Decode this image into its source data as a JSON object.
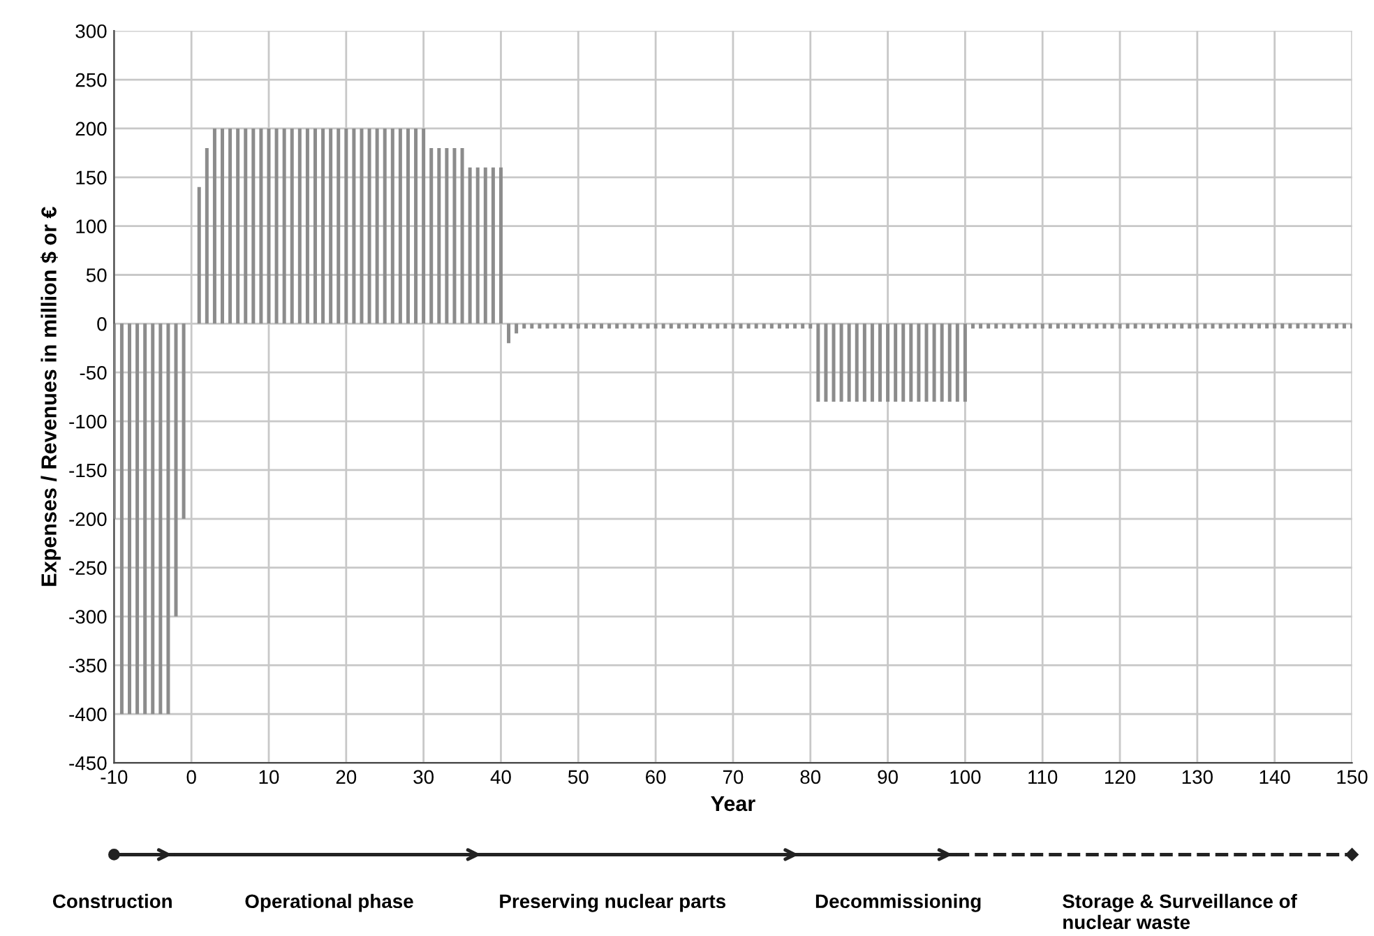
{
  "chart_data": {
    "type": "bar",
    "xlabel": "Year",
    "ylabel": "Expenses / Revenues in million $ or €",
    "x": [
      -10,
      -9,
      -8,
      -7,
      -6,
      -5,
      -4,
      -3,
      -2,
      -1,
      0,
      1,
      2,
      3,
      4,
      5,
      6,
      7,
      8,
      9,
      10,
      11,
      12,
      13,
      14,
      15,
      16,
      17,
      18,
      19,
      20,
      21,
      22,
      23,
      24,
      25,
      26,
      27,
      28,
      29,
      30,
      31,
      32,
      33,
      34,
      35,
      36,
      37,
      38,
      39,
      40,
      41,
      42,
      43,
      44,
      45,
      46,
      47,
      48,
      49,
      50,
      51,
      52,
      53,
      54,
      55,
      56,
      57,
      58,
      59,
      60,
      61,
      62,
      63,
      64,
      65,
      66,
      67,
      68,
      69,
      70,
      71,
      72,
      73,
      74,
      75,
      76,
      77,
      78,
      79,
      80,
      81,
      82,
      83,
      84,
      85,
      86,
      87,
      88,
      89,
      90,
      91,
      92,
      93,
      94,
      95,
      96,
      97,
      98,
      99,
      100,
      101,
      102,
      103,
      104,
      105,
      106,
      107,
      108,
      109,
      110,
      111,
      112,
      113,
      114,
      115,
      116,
      117,
      118,
      119,
      120,
      121,
      122,
      123,
      124,
      125,
      126,
      127,
      128,
      129,
      130,
      131,
      132,
      133,
      134,
      135,
      136,
      137,
      138,
      139,
      140,
      141,
      142,
      143,
      144,
      145,
      146,
      147,
      148,
      149,
      150
    ],
    "values": [
      -200,
      -400,
      -400,
      -400,
      -400,
      -400,
      -400,
      -400,
      -300,
      -200,
      null,
      140,
      180,
      200,
      200,
      200,
      200,
      200,
      200,
      200,
      200,
      200,
      200,
      200,
      200,
      200,
      200,
      200,
      200,
      200,
      200,
      200,
      200,
      200,
      200,
      200,
      200,
      200,
      200,
      200,
      200,
      180,
      180,
      180,
      180,
      180,
      160,
      160,
      160,
      160,
      160,
      -20,
      -10,
      -5,
      -5,
      -5,
      -5,
      -5,
      -5,
      -5,
      -5,
      -5,
      -5,
      -5,
      -5,
      -5,
      -5,
      -5,
      -5,
      -5,
      -5,
      -5,
      -5,
      -5,
      -5,
      -5,
      -5,
      -5,
      -5,
      -5,
      -5,
      -5,
      -5,
      -5,
      -5,
      -5,
      -5,
      -5,
      -5,
      -5,
      -5,
      -80,
      -80,
      -80,
      -80,
      -80,
      -80,
      -80,
      -80,
      -80,
      -80,
      -80,
      -80,
      -80,
      -80,
      -80,
      -80,
      -80,
      -80,
      -80,
      -80,
      -5,
      -5,
      -5,
      -5,
      -5,
      -5,
      -5,
      -5,
      -5,
      -5,
      -5,
      -5,
      -5,
      -5,
      -5,
      -5,
      -5,
      -5,
      -5,
      -5,
      -5,
      -5,
      -5,
      -5,
      -5,
      -5,
      -5,
      -5,
      -5,
      -5,
      -5,
      -5,
      -5,
      -5,
      -5,
      -5,
      -5,
      -5,
      -5,
      -5,
      -5,
      -5,
      -5,
      -5,
      -5,
      -5,
      -5,
      -5,
      -5,
      -5
    ],
    "color": "#8c8c8c",
    "xlim": [
      -10,
      150
    ],
    "xticks": [
      -10,
      0,
      10,
      20,
      30,
      40,
      50,
      60,
      70,
      80,
      90,
      100,
      110,
      120,
      130,
      140,
      150
    ],
    "ylim": [
      -450,
      300
    ],
    "yticks": [
      -450,
      -400,
      -350,
      -300,
      -250,
      -200,
      -150,
      -100,
      -50,
      0,
      50,
      100,
      150,
      200,
      250,
      300
    ],
    "grid": true,
    "annotations": [
      "Construction",
      "Operational phase",
      "Preserving nuclear parts",
      "Decommissioning",
      "Storage & Surveillance of\nnuclear waste"
    ]
  }
}
